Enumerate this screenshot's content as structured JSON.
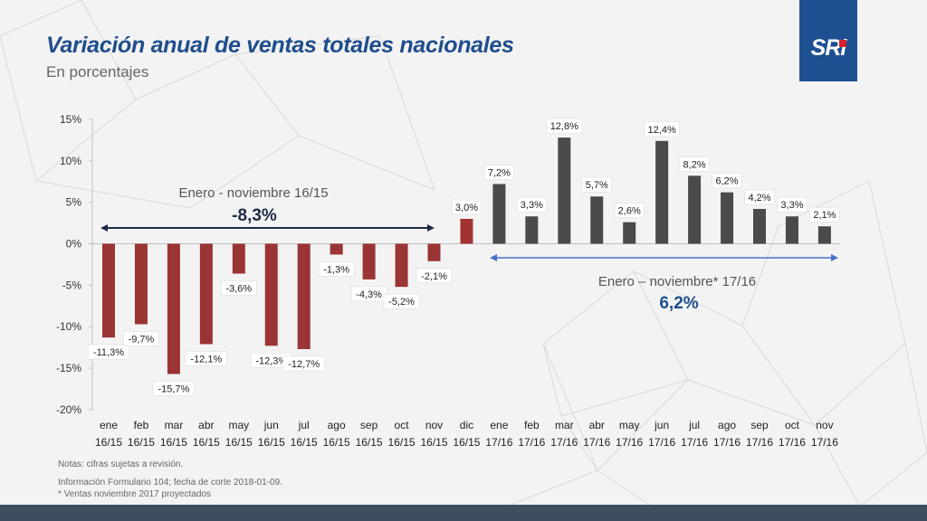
{
  "header": {
    "title": "Variación anual de ventas totales nacionales",
    "subtitle": "En porcentajes",
    "logo": "SRi"
  },
  "colors": {
    "negative": "#9b3434",
    "positive_2016": "#a33333",
    "bars_2017": "#4a4a4a",
    "arrow_2016": "#1e2a44",
    "arrow_2017": "#4472c4",
    "title": "#1f4e8c"
  },
  "chart_data": {
    "type": "bar",
    "categories": [
      [
        "ene",
        "16/15"
      ],
      [
        "feb",
        "16/15"
      ],
      [
        "mar",
        "16/15"
      ],
      [
        "abr",
        "16/15"
      ],
      [
        "may",
        "16/15"
      ],
      [
        "jun",
        "16/15"
      ],
      [
        "jul",
        "16/15"
      ],
      [
        "ago",
        "16/15"
      ],
      [
        "sep",
        "16/15"
      ],
      [
        "oct",
        "16/15"
      ],
      [
        "nov",
        "16/15"
      ],
      [
        "dic",
        "16/15"
      ],
      [
        "ene",
        "17/16"
      ],
      [
        "feb",
        "17/16"
      ],
      [
        "mar",
        "17/16"
      ],
      [
        "abr",
        "17/16"
      ],
      [
        "may",
        "17/16"
      ],
      [
        "jun",
        "17/16"
      ],
      [
        "jul",
        "17/16"
      ],
      [
        "ago",
        "17/16"
      ],
      [
        "sep",
        "17/16"
      ],
      [
        "oct",
        "17/16"
      ],
      [
        "nov",
        "17/16"
      ]
    ],
    "values": [
      -11.3,
      -9.7,
      -15.7,
      -12.1,
      -3.6,
      -12.3,
      -12.7,
      -1.3,
      -4.3,
      -5.2,
      -2.1,
      3.0,
      7.2,
      3.3,
      12.8,
      5.7,
      2.6,
      12.4,
      8.2,
      6.2,
      4.2,
      3.3,
      2.1
    ],
    "data_labels": [
      "-11,3%",
      "-9,7%",
      "-15,7%",
      "-12,1%",
      "-3,6%",
      "-12,3%",
      "-12,7%",
      "-1,3%",
      "-4,3%",
      "-5,2%",
      "-2,1%",
      "3,0%",
      "7,2%",
      "3,3%",
      "12,8%",
      "5,7%",
      "2,6%",
      "12,4%",
      "8,2%",
      "6,2%",
      "4,2%",
      "3,3%",
      "2,1%"
    ],
    "yticks": [
      15,
      10,
      5,
      0,
      -5,
      -10,
      -15,
      -20
    ],
    "ytick_labels": [
      "15%",
      "10%",
      "5%",
      "0%",
      "-5%",
      "-10%",
      "-15%",
      "-20%"
    ],
    "ylim": [
      -20,
      15
    ],
    "grid": false,
    "annotations": [
      {
        "label": "Enero - noviembre 16/15",
        "value": "-8,3%",
        "span": [
          0,
          10
        ]
      },
      {
        "label": "Enero – noviembre* 17/16",
        "value": "6,2%",
        "span": [
          12,
          22
        ]
      }
    ]
  },
  "notes": [
    "Notas: cifras sujetas a revisión.",
    "Información Formulario 104; fecha de corte 2018-01-09.",
    "* Ventas noviembre 2017 proyectados"
  ]
}
